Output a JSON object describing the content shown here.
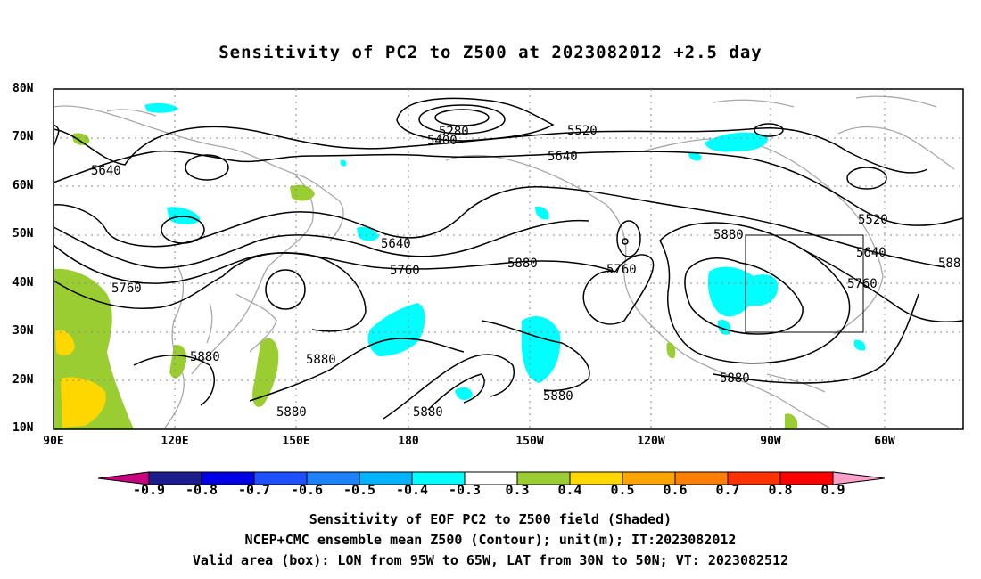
{
  "title": "Sensitivity of PC2 to Z500 at 2023082012 +2.5 day",
  "lat_labels": [
    "80N",
    "70N",
    "60N",
    "50N",
    "40N",
    "30N",
    "20N",
    "10N"
  ],
  "lon_labels": [
    "90E",
    "120E",
    "150E",
    "180",
    "150W",
    "120W",
    "90W",
    "60W"
  ],
  "contour_labels": [
    "5280",
    "5400",
    "5520",
    "5640",
    "5640",
    "5640",
    "5520",
    "5760",
    "5760",
    "5760",
    "5760",
    "5880",
    "5880",
    "5880",
    "5880",
    "5880",
    "5880",
    "5880",
    "5880",
    "5640",
    "588"
  ],
  "colorbar": {
    "labels": [
      "-0.9",
      "-0.8",
      "-0.7",
      "-0.6",
      "-0.5",
      "-0.4",
      "-0.3",
      "0.3",
      "0.4",
      "0.5",
      "0.6",
      "0.7",
      "0.8",
      "0.9"
    ],
    "colors": [
      "#c8007f",
      "#1d1d8e",
      "#0000e6",
      "#1e50ff",
      "#1e82ff",
      "#00b4ff",
      "#00ffff",
      "#ffffff",
      "#9acd32",
      "#ffd700",
      "#ffa500",
      "#ff7f00",
      "#ff3300",
      "#ff0000",
      "#ffa0c8"
    ]
  },
  "captions": {
    "line1": "Sensitivity of EOF PC2 to Z500 field (Shaded)",
    "line2": "NCEP+CMC ensemble mean Z500 (Contour); unit(m); IT:2023082012",
    "line3": "Valid area (box): LON from 95W to 65W, LAT from 30N to 50N; VT: 2023082512"
  },
  "valid_box": {
    "lon": [
      "95W",
      "65W"
    ],
    "lat": [
      "30N",
      "50N"
    ]
  }
}
